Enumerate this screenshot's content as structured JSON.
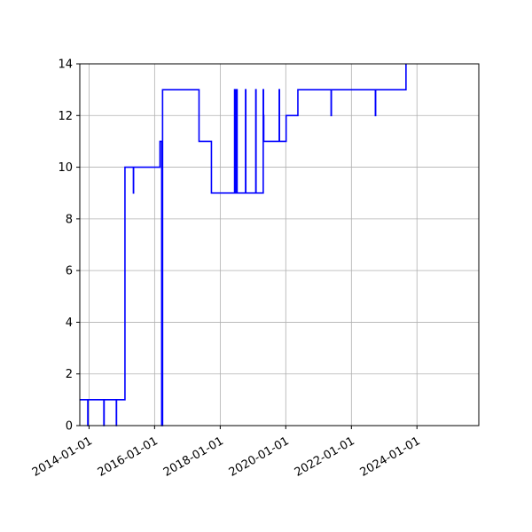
{
  "chart_data": {
    "type": "line",
    "title": "",
    "xlabel": "",
    "ylabel": "",
    "xlim": [
      "2013-09-20",
      "2025-11-20"
    ],
    "ylim": [
      0,
      14
    ],
    "grid": true,
    "x_ticks": [
      "2014-01-01",
      "2016-01-01",
      "2018-01-01",
      "2020-01-01",
      "2022-01-01",
      "2024-01-01"
    ],
    "y_ticks": [
      0,
      2,
      4,
      6,
      8,
      10,
      12,
      14
    ],
    "series": [
      {
        "color": "#0000ff",
        "x": [
          "2013-09-20",
          "2013-12-18",
          "2013-12-18",
          "2013-12-20",
          "2013-12-20",
          "2014-06-15",
          "2014-06-15",
          "2014-06-18",
          "2014-06-18",
          "2014-11-01",
          "2014-11-01",
          "2014-11-03",
          "2014-11-03",
          "2015-02-05",
          "2015-02-05",
          "2015-05-10",
          "2015-05-10",
          "2015-05-12",
          "2015-05-12",
          "2016-03-01",
          "2016-03-01",
          "2016-03-20",
          "2016-03-20",
          "2016-03-30",
          "2016-03-30",
          "2016-04-01",
          "2016-04-01",
          "2017-05-10",
          "2017-05-10",
          "2017-09-25",
          "2017-09-25",
          "2018-06-10",
          "2018-06-10",
          "2018-06-13",
          "2018-06-13",
          "2018-06-25",
          "2018-06-25",
          "2018-06-28",
          "2018-06-28",
          "2018-07-05",
          "2018-07-05",
          "2018-07-08",
          "2018-07-08",
          "2018-10-10",
          "2018-10-10",
          "2018-10-13",
          "2018-10-13",
          "2019-02-01",
          "2019-02-01",
          "2019-02-04",
          "2019-02-04",
          "2019-04-25",
          "2019-04-25",
          "2019-04-28",
          "2019-04-28",
          "2019-05-01",
          "2019-05-01",
          "2019-10-20",
          "2019-10-20",
          "2019-10-23",
          "2019-10-23",
          "2020-01-05",
          "2020-01-05",
          "2020-05-15",
          "2020-05-15",
          "2021-05-20",
          "2021-05-20",
          "2021-05-23",
          "2021-05-23",
          "2022-09-25",
          "2022-09-25",
          "2022-09-28",
          "2022-09-28",
          "2023-09-01",
          "2023-09-01"
        ],
        "y": [
          1,
          1,
          0,
          0,
          1,
          1,
          0,
          0,
          1,
          1,
          0,
          0,
          1,
          1,
          10,
          10,
          9,
          9,
          10,
          10,
          11,
          11,
          0,
          0,
          13,
          13,
          13,
          13,
          11,
          11,
          9,
          9,
          13,
          13,
          9,
          9,
          13,
          13,
          9,
          9,
          13,
          13,
          9,
          9,
          13,
          13,
          9,
          9,
          13,
          13,
          9,
          9,
          13,
          13,
          12,
          12,
          11,
          11,
          13,
          13,
          11,
          11,
          12,
          12,
          13,
          13,
          12,
          12,
          13,
          13,
          12,
          12,
          13,
          13,
          14
        ]
      }
    ]
  }
}
